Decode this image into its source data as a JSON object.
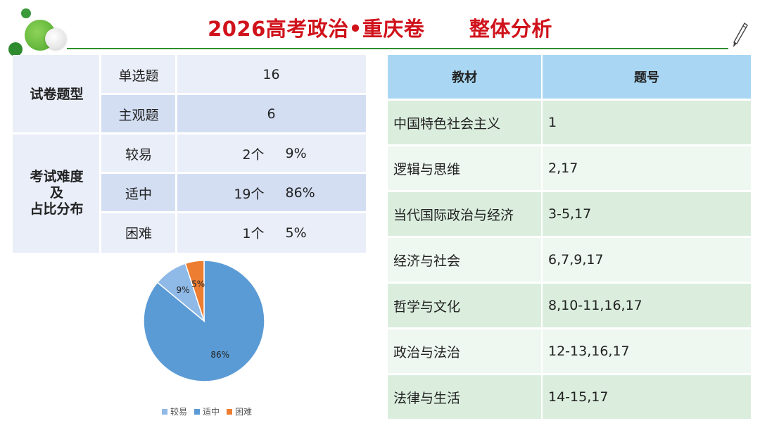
{
  "header": {
    "title": "2026高考政治•重庆卷",
    "subtitle": "整体分析"
  },
  "colors": {
    "title": "#d0121b",
    "accent_green": "#2d8f2d",
    "pie_easy": "#8fb9e6",
    "pie_medium": "#5b9bd5",
    "pie_hard": "#ed7d31"
  },
  "left_table": {
    "section_type": {
      "label": "试卷题型",
      "rows": [
        {
          "name": "单选题",
          "value": "16"
        },
        {
          "name": "主观题",
          "value": "6"
        }
      ]
    },
    "section_difficulty": {
      "label_lines": [
        "考试难度",
        "及",
        "占比分布"
      ],
      "rows": [
        {
          "name": "较易",
          "count": "2个",
          "percent": "9%"
        },
        {
          "name": "适中",
          "count": "19个",
          "percent": "86%"
        },
        {
          "name": "困难",
          "count": "1个",
          "percent": "5%"
        }
      ]
    }
  },
  "chart_data": {
    "type": "pie",
    "categories": [
      "较易",
      "适中",
      "困难"
    ],
    "values": [
      9,
      86,
      5
    ],
    "labels": [
      "9%",
      "86%",
      "5%"
    ],
    "legend_position": "bottom"
  },
  "right_table": {
    "headers": [
      "教材",
      "题号"
    ],
    "rows": [
      {
        "book": "中国特色社会主义",
        "questions": "1"
      },
      {
        "book": "逻辑与思维",
        "questions": "2,17"
      },
      {
        "book": "当代国际政治与经济",
        "questions": "3-5,17"
      },
      {
        "book": "经济与社会",
        "questions": "6,7,9,17"
      },
      {
        "book": "哲学与文化",
        "questions": "8,10-11,16,17"
      },
      {
        "book": "政治与法治",
        "questions": "12-13,16,17"
      },
      {
        "book": "法律与生活",
        "questions": "14-15,17"
      }
    ]
  }
}
